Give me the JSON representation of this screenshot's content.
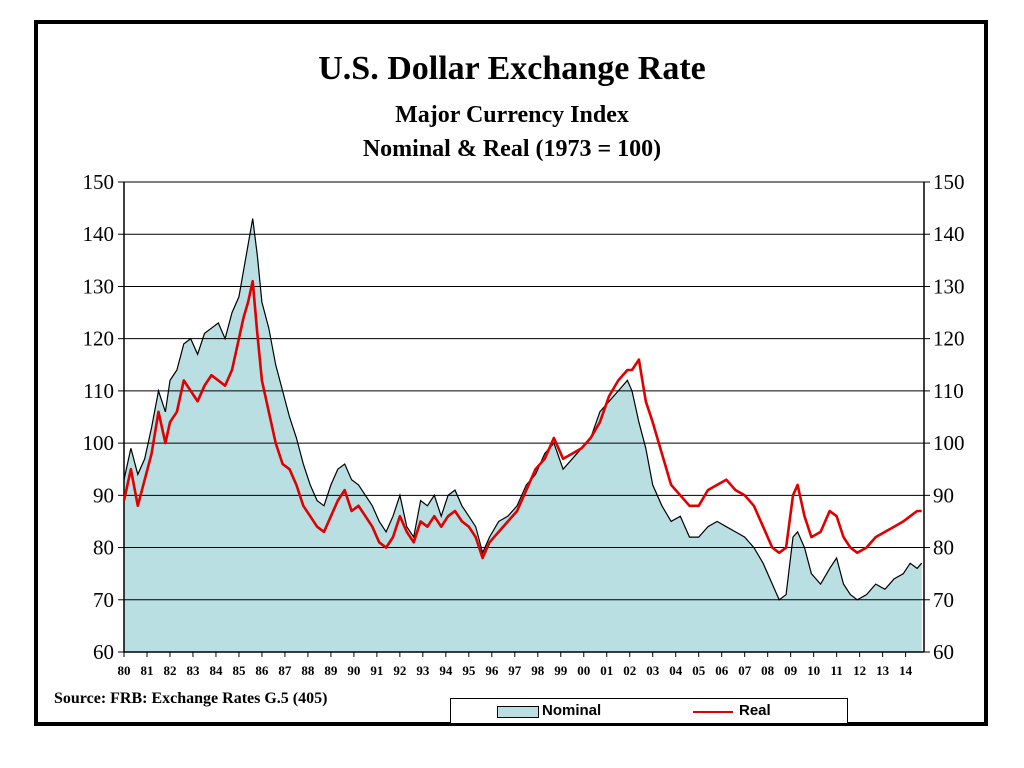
{
  "chart_data": {
    "type": "area",
    "title": "U.S. Dollar Exchange Rate",
    "subtitle_1": "Major Currency Index",
    "subtitle_2": "Nominal & Real (1973 = 100)",
    "source": "Source: FRB: Exchange Rates G.5 (405)",
    "ylim": [
      60,
      150
    ],
    "yticks": [
      60,
      70,
      80,
      90,
      100,
      110,
      120,
      130,
      140,
      150
    ],
    "ytick_labels": [
      "60",
      "70",
      "80",
      "90",
      "100",
      "110",
      "120",
      "130",
      "140",
      "150"
    ],
    "xlim": [
      1980,
      2014.8
    ],
    "xtick_labels": [
      "80",
      "81",
      "82",
      "83",
      "84",
      "85",
      "86",
      "87",
      "88",
      "89",
      "90",
      "91",
      "92",
      "93",
      "94",
      "95",
      "96",
      "97",
      "98",
      "99",
      "00",
      "01",
      "02",
      "03",
      "04",
      "05",
      "06",
      "07",
      "08",
      "09",
      "10",
      "11",
      "12",
      "13",
      "14"
    ],
    "grid": true,
    "legend_position": "bottom-right",
    "series": [
      {
        "name": "Nominal",
        "style": "area",
        "fill": "#b9dfe2",
        "stroke": "#000000",
        "x": [
          1980.0,
          1980.3,
          1980.6,
          1980.9,
          1981.2,
          1981.5,
          1981.8,
          1982.0,
          1982.3,
          1982.6,
          1982.9,
          1983.2,
          1983.5,
          1983.8,
          1984.1,
          1984.4,
          1984.7,
          1985.0,
          1985.2,
          1985.4,
          1985.6,
          1985.8,
          1986.0,
          1986.3,
          1986.6,
          1986.9,
          1987.2,
          1987.5,
          1987.8,
          1988.1,
          1988.4,
          1988.7,
          1989.0,
          1989.3,
          1989.6,
          1989.9,
          1990.2,
          1990.5,
          1990.8,
          1991.1,
          1991.4,
          1991.7,
          1992.0,
          1992.3,
          1992.6,
          1992.9,
          1993.2,
          1993.5,
          1993.8,
          1994.1,
          1994.4,
          1994.7,
          1995.0,
          1995.3,
          1995.6,
          1995.9,
          1996.3,
          1996.7,
          1997.1,
          1997.5,
          1997.9,
          1998.3,
          1998.7,
          1999.1,
          1999.5,
          1999.9,
          2000.3,
          2000.7,
          2001.1,
          2001.5,
          2001.9,
          2002.1,
          2002.4,
          2002.7,
          2003.0,
          2003.4,
          2003.8,
          2004.2,
          2004.6,
          2005.0,
          2005.4,
          2005.8,
          2006.2,
          2006.6,
          2007.0,
          2007.4,
          2007.8,
          2008.2,
          2008.5,
          2008.8,
          2009.1,
          2009.3,
          2009.6,
          2009.9,
          2010.3,
          2010.7,
          2011.0,
          2011.3,
          2011.6,
          2011.9,
          2012.3,
          2012.7,
          2013.1,
          2013.5,
          2013.9,
          2014.2,
          2014.5,
          2014.7
        ],
        "values": [
          93,
          99,
          94,
          97,
          103,
          110,
          106,
          112,
          114,
          119,
          120,
          117,
          121,
          122,
          123,
          120,
          125,
          128,
          133,
          138,
          143,
          136,
          127,
          122,
          115,
          110,
          105,
          101,
          96,
          92,
          89,
          88,
          92,
          95,
          96,
          93,
          92,
          90,
          88,
          85,
          83,
          86,
          90,
          84,
          82,
          89,
          88,
          90,
          86,
          90,
          91,
          88,
          86,
          84,
          79,
          82,
          85,
          86,
          88,
          92,
          94,
          98,
          100,
          95,
          97,
          99,
          101,
          106,
          108,
          110,
          112,
          110,
          104,
          99,
          92,
          88,
          85,
          86,
          82,
          82,
          84,
          85,
          84,
          83,
          82,
          80,
          77,
          73,
          70,
          71,
          82,
          83,
          80,
          75,
          73,
          76,
          78,
          73,
          71,
          70,
          71,
          73,
          72,
          74,
          75,
          77,
          76,
          77
        ]
      },
      {
        "name": "Real",
        "style": "line",
        "stroke": "#e00000",
        "x": [
          1980.0,
          1980.3,
          1980.6,
          1980.9,
          1981.2,
          1981.5,
          1981.8,
          1982.0,
          1982.3,
          1982.6,
          1982.9,
          1983.2,
          1983.5,
          1983.8,
          1984.1,
          1984.4,
          1984.7,
          1985.0,
          1985.2,
          1985.4,
          1985.6,
          1985.8,
          1986.0,
          1986.3,
          1986.6,
          1986.9,
          1987.2,
          1987.5,
          1987.8,
          1988.1,
          1988.4,
          1988.7,
          1989.0,
          1989.3,
          1989.6,
          1989.9,
          1990.2,
          1990.5,
          1990.8,
          1991.1,
          1991.4,
          1991.7,
          1992.0,
          1992.3,
          1992.6,
          1992.9,
          1993.2,
          1993.5,
          1993.8,
          1994.1,
          1994.4,
          1994.7,
          1995.0,
          1995.3,
          1995.6,
          1995.9,
          1996.3,
          1996.7,
          1997.1,
          1997.5,
          1997.9,
          1998.3,
          1998.7,
          1999.1,
          1999.5,
          1999.9,
          2000.3,
          2000.7,
          2001.1,
          2001.5,
          2001.9,
          2002.1,
          2002.4,
          2002.7,
          2003.0,
          2003.4,
          2003.8,
          2004.2,
          2004.6,
          2005.0,
          2005.4,
          2005.8,
          2006.2,
          2006.6,
          2007.0,
          2007.4,
          2007.8,
          2008.2,
          2008.5,
          2008.8,
          2009.1,
          2009.3,
          2009.6,
          2009.9,
          2010.3,
          2010.7,
          2011.0,
          2011.3,
          2011.6,
          2011.9,
          2012.3,
          2012.7,
          2013.1,
          2013.5,
          2013.9,
          2014.2,
          2014.5,
          2014.7
        ],
        "values": [
          89,
          95,
          88,
          93,
          98,
          106,
          100,
          104,
          106,
          112,
          110,
          108,
          111,
          113,
          112,
          111,
          114,
          120,
          124,
          127,
          131,
          121,
          112,
          106,
          100,
          96,
          95,
          92,
          88,
          86,
          84,
          83,
          86,
          89,
          91,
          87,
          88,
          86,
          84,
          81,
          80,
          82,
          86,
          83,
          81,
          85,
          84,
          86,
          84,
          86,
          87,
          85,
          84,
          82,
          78,
          81,
          83,
          85,
          87,
          91,
          95,
          97,
          101,
          97,
          98,
          99,
          101,
          104,
          109,
          112,
          114,
          114,
          116,
          108,
          104,
          98,
          92,
          90,
          88,
          88,
          91,
          92,
          93,
          91,
          90,
          88,
          84,
          80,
          79,
          80,
          90,
          92,
          86,
          82,
          83,
          87,
          86,
          82,
          80,
          79,
          80,
          82,
          83,
          84,
          85,
          86,
          87,
          87
        ]
      }
    ]
  }
}
